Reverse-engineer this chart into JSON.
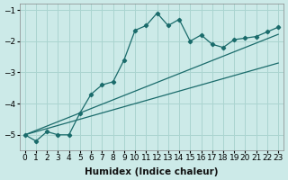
{
  "xlabel": "Humidex (Indice chaleur)",
  "ylabel": "",
  "background_color": "#cceae8",
  "grid_color": "#aad4d0",
  "line_color": "#1a6b6b",
  "x_humidex": [
    0,
    1,
    2,
    3,
    4,
    5,
    6,
    7,
    8,
    9,
    10,
    11,
    12,
    13,
    14,
    15,
    16,
    17,
    18,
    19,
    20,
    21,
    22,
    23
  ],
  "curve1_y": [
    -5.0,
    -5.2,
    -4.9,
    -5.0,
    -5.0,
    -4.3,
    -3.7,
    -3.4,
    -3.3,
    -2.6,
    -1.65,
    -1.5,
    -1.1,
    -1.5,
    -1.3,
    -2.0,
    -1.8,
    -2.1,
    -2.2,
    -1.95,
    -1.9,
    -1.85,
    -1.7,
    -1.55
  ],
  "line1_y": [
    -5.0,
    -4.86,
    -4.72,
    -4.58,
    -4.44,
    -4.3,
    -4.16,
    -4.02,
    -3.88,
    -3.74,
    -3.6,
    -3.46,
    -3.32,
    -3.18,
    -3.04,
    -2.9,
    -2.76,
    -2.62,
    -2.48,
    -2.34,
    -2.2,
    -2.06,
    -1.92,
    -1.78
  ],
  "line2_y": [
    -5.0,
    -4.9,
    -4.8,
    -4.7,
    -4.6,
    -4.5,
    -4.4,
    -4.3,
    -4.2,
    -4.1,
    -4.0,
    -3.9,
    -3.8,
    -3.7,
    -3.6,
    -3.5,
    -3.4,
    -3.3,
    -3.2,
    -3.1,
    -3.0,
    -2.9,
    -2.8,
    -2.7
  ],
  "ylim": [
    -5.5,
    -0.8
  ],
  "xlim": [
    -0.5,
    23.5
  ],
  "yticks": [
    -5,
    -4,
    -3,
    -2,
    -1
  ],
  "xticks": [
    0,
    1,
    2,
    3,
    4,
    5,
    6,
    7,
    8,
    9,
    10,
    11,
    12,
    13,
    14,
    15,
    16,
    17,
    18,
    19,
    20,
    21,
    22,
    23
  ],
  "tick_fontsize": 6.5,
  "label_fontsize": 7.5
}
